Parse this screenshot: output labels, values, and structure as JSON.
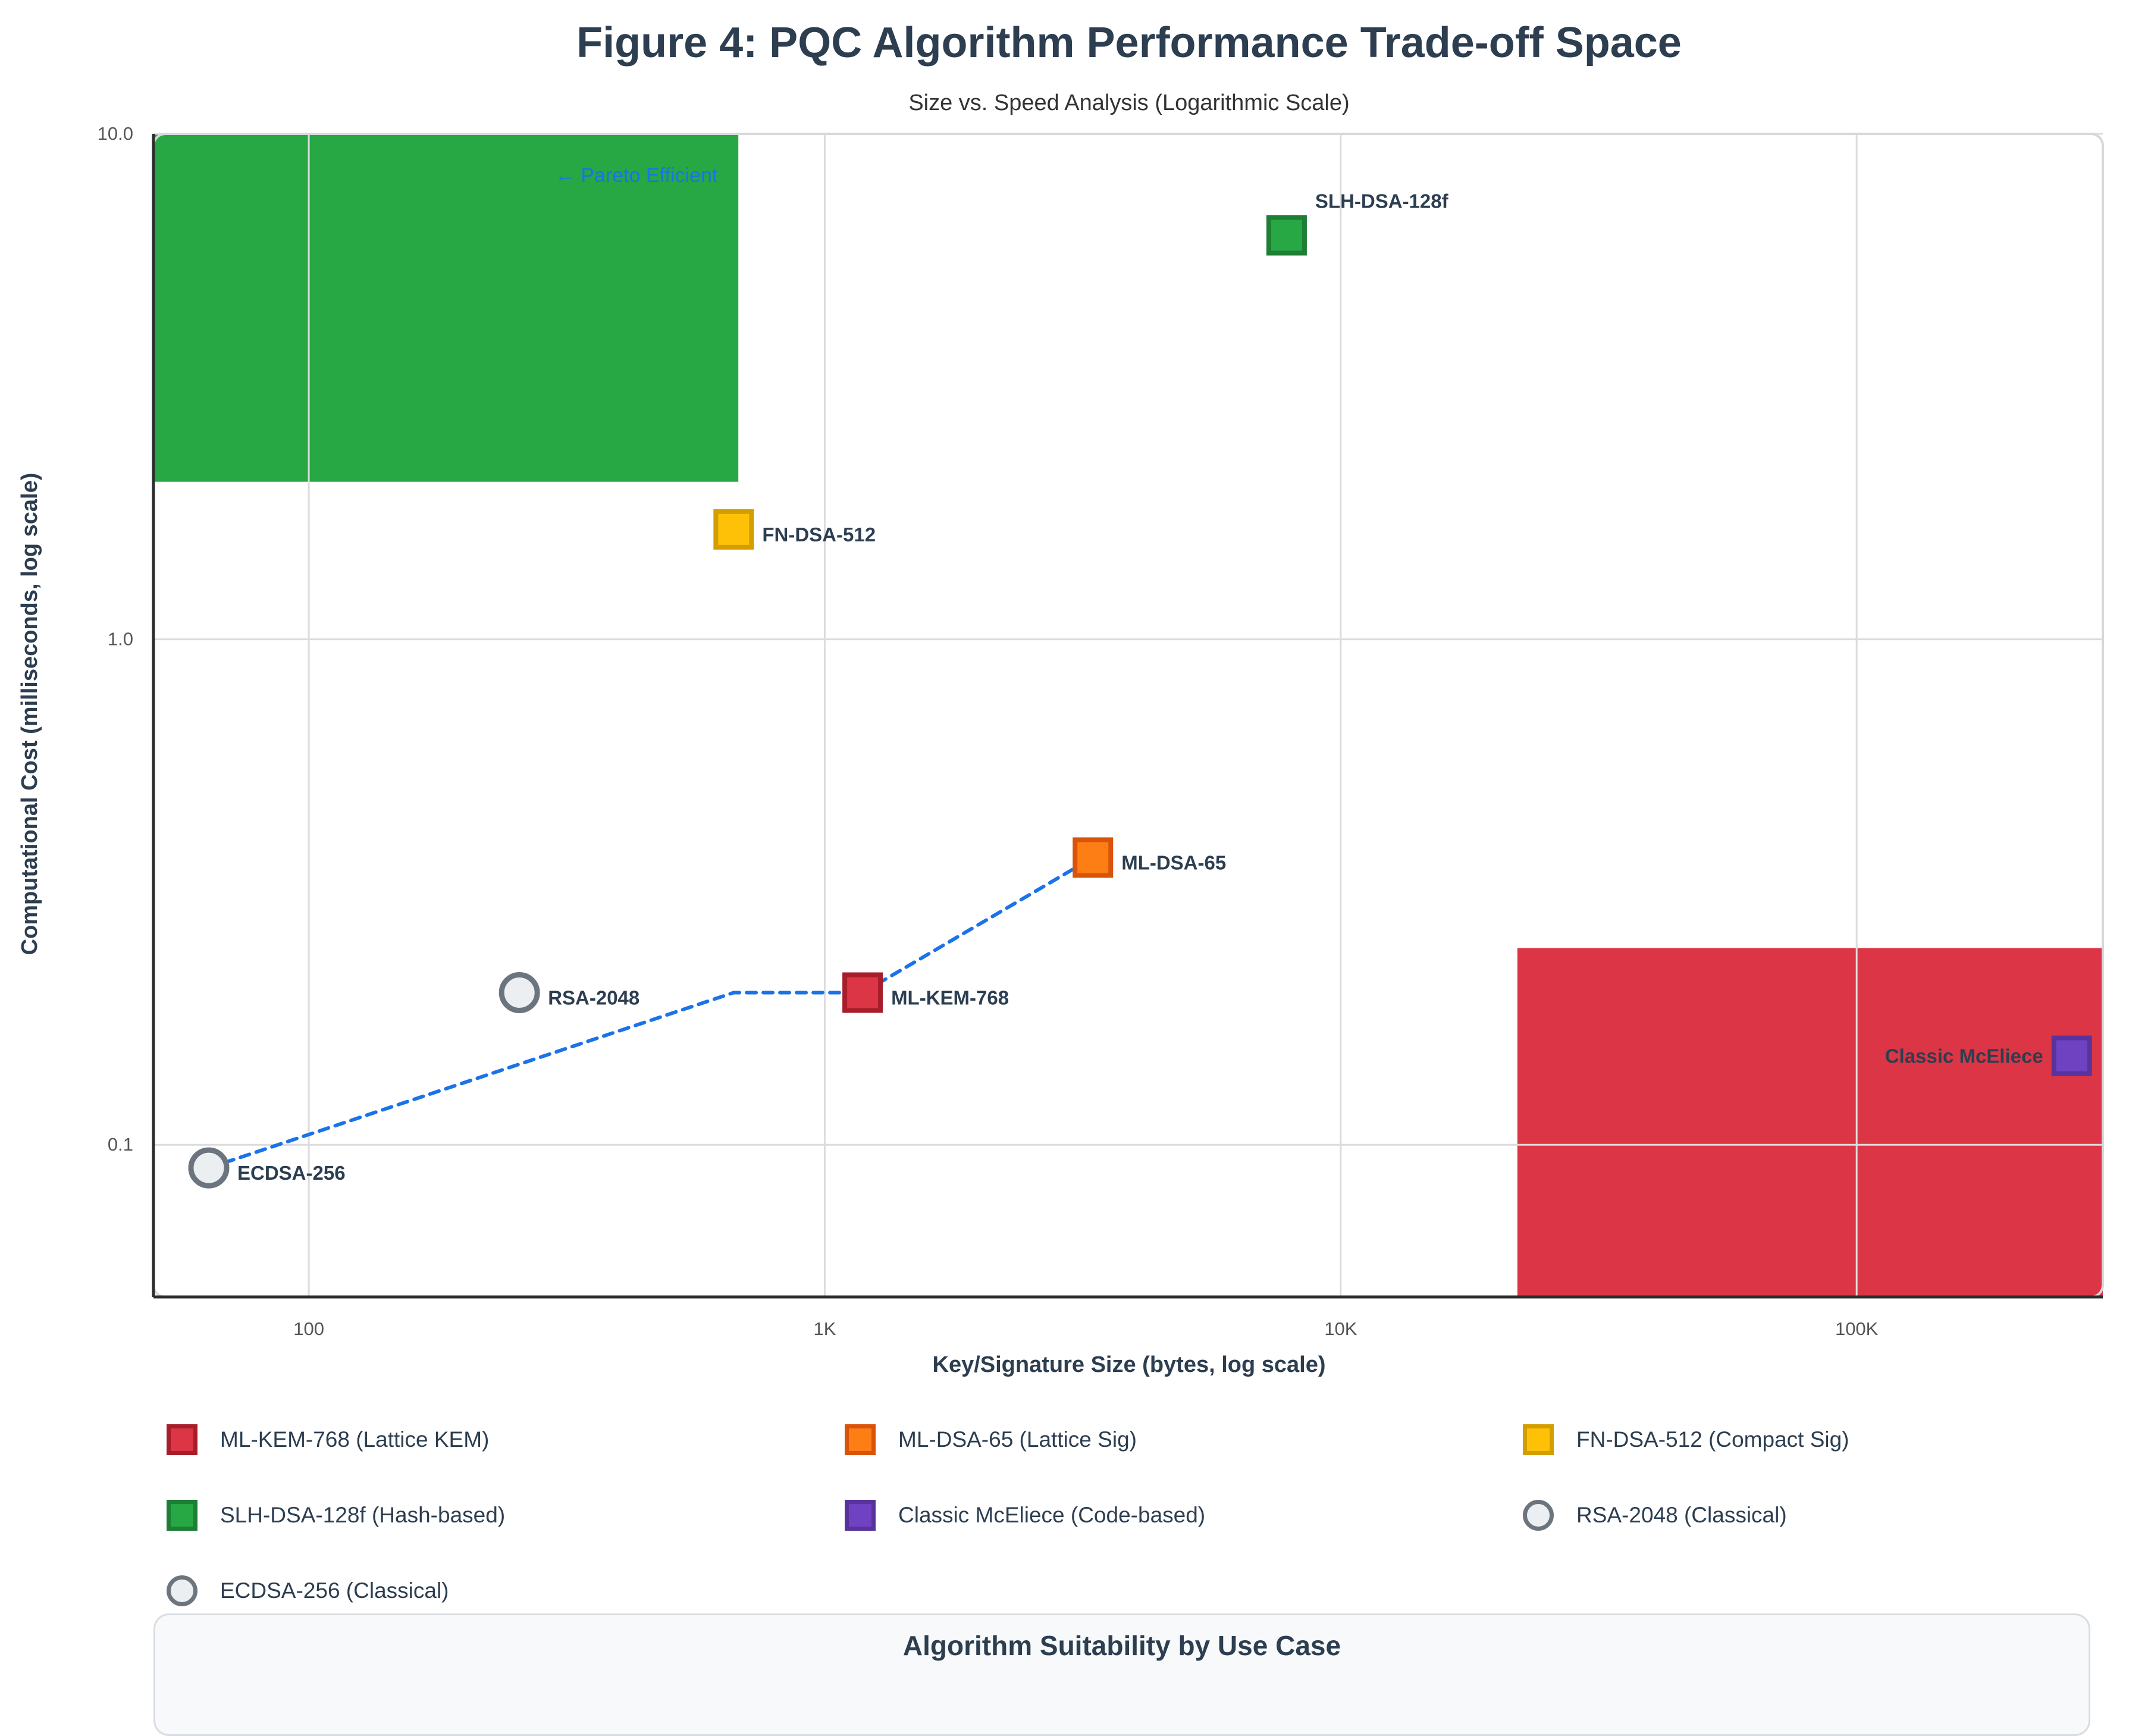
{
  "chart_data": {
    "type": "scatter",
    "title": "Figure 4: PQC Algorithm Performance Trade-off Space",
    "subtitle": "Size vs. Speed Analysis (Logarithmic Scale)",
    "xlabel": "Key/Signature Size (bytes, log scale)",
    "ylabel": "Computational Cost (milliseconds, log scale)",
    "x_scale": "log",
    "y_scale": "log",
    "xlim": [
      50,
      300000
    ],
    "ylim": [
      0.05,
      10
    ],
    "x_ticks": [
      {
        "value": 100,
        "label": "100"
      },
      {
        "value": 1000,
        "label": "1K"
      },
      {
        "value": 10000,
        "label": "10K"
      },
      {
        "value": 100000,
        "label": "100K"
      }
    ],
    "y_ticks": [
      {
        "value": 10,
        "label": "10.0"
      },
      {
        "value": 1,
        "label": "1.0"
      },
      {
        "value": 0.1,
        "label": "0.1"
      }
    ],
    "grid": true,
    "regions": [
      {
        "name": "pareto-efficient-region",
        "x": [
          50,
          680
        ],
        "y": [
          2.05,
          10
        ],
        "color": "#28a745"
      },
      {
        "name": "large-key-region",
        "x": [
          22000,
          300000
        ],
        "y": [
          0.05,
          0.245
        ],
        "color": "#dc3545"
      }
    ],
    "annotations": [
      {
        "text": "← Pareto Efficient",
        "x": 300,
        "y": 8.3,
        "color": "#1a73e8"
      }
    ],
    "points": [
      {
        "name": "ML-KEM-768",
        "x": 1184,
        "y": 0.2,
        "marker": "square",
        "fill": "#dc3545",
        "stroke": "#a71d2a",
        "label_side": "right"
      },
      {
        "name": "ML-DSA-65",
        "x": 3309,
        "y": 0.37,
        "marker": "square",
        "fill": "#fd7e14",
        "stroke": "#d9530a",
        "label_side": "right"
      },
      {
        "name": "FN-DSA-512",
        "x": 666,
        "y": 1.65,
        "marker": "square",
        "fill": "#ffc107",
        "stroke": "#d39e00",
        "label_side": "right"
      },
      {
        "name": "SLH-DSA-128f",
        "x": 7856,
        "y": 6.3,
        "marker": "square",
        "fill": "#28a745",
        "stroke": "#1e7e34",
        "label_side": "top-right"
      },
      {
        "name": "Classic McEliece",
        "x": 261120,
        "y": 0.15,
        "marker": "square",
        "fill": "#6f42c1",
        "stroke": "#59339d",
        "label_side": "left"
      },
      {
        "name": "RSA-2048",
        "x": 256,
        "y": 0.2,
        "marker": "circle",
        "fill": "#eceff1",
        "stroke": "#6c757d",
        "label_side": "right"
      },
      {
        "name": "ECDSA-256",
        "x": 64,
        "y": 0.09,
        "marker": "circle",
        "fill": "#eceff1",
        "stroke": "#6c757d",
        "label_side": "right"
      }
    ],
    "pareto_frontier": {
      "style": "dashed",
      "color": "#1a73e8",
      "points": [
        [
          64,
          0.09
        ],
        [
          666,
          0.2
        ],
        [
          1184,
          0.2
        ],
        [
          3309,
          0.37
        ]
      ]
    },
    "legend": [
      {
        "label": "ML-KEM-768 (Lattice KEM)",
        "marker": "square",
        "fill": "#dc3545",
        "stroke": "#a71d2a"
      },
      {
        "label": "ML-DSA-65 (Lattice Sig)",
        "marker": "square",
        "fill": "#fd7e14",
        "stroke": "#d9530a"
      },
      {
        "label": "FN-DSA-512 (Compact Sig)",
        "marker": "square",
        "fill": "#ffc107",
        "stroke": "#d39e00"
      },
      {
        "label": "SLH-DSA-128f (Hash-based)",
        "marker": "square",
        "fill": "#28a745",
        "stroke": "#1e7e34"
      },
      {
        "label": "Classic McEliece (Code-based)",
        "marker": "square",
        "fill": "#6f42c1",
        "stroke": "#59339d"
      },
      {
        "label": "RSA-2048 (Classical)",
        "marker": "circle",
        "fill": "#eceff1",
        "stroke": "#6c757d"
      },
      {
        "label": "ECDSA-256 (Classical)",
        "marker": "circle",
        "fill": "#eceff1",
        "stroke": "#6c757d"
      }
    ],
    "legend_position": "bottom"
  },
  "suitability_panel": {
    "title": "Algorithm Suitability by Use Case"
  }
}
